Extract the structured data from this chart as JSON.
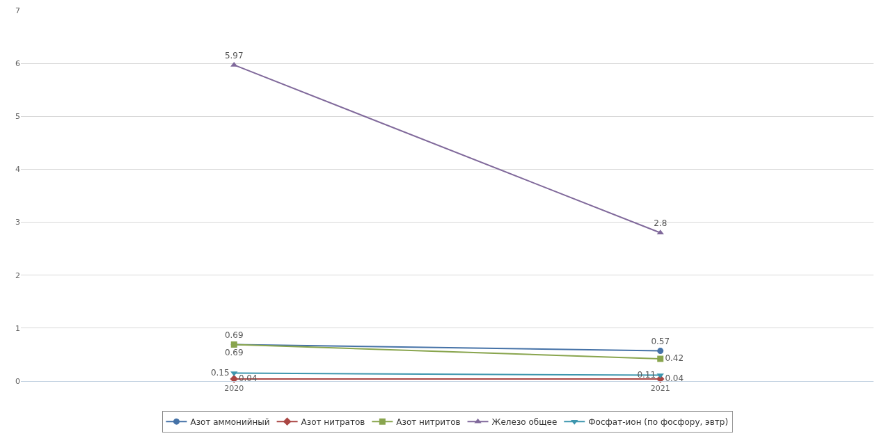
{
  "chart_data": {
    "type": "line",
    "categories": [
      "2020",
      "2021"
    ],
    "series": [
      {
        "name": "Азот аммонийный",
        "color": "#4572a7",
        "marker": "circle",
        "values": [
          0.69,
          0.57
        ]
      },
      {
        "name": "Азот нитратов",
        "color": "#aa4643",
        "marker": "diamond",
        "values": [
          0.04,
          0.04
        ]
      },
      {
        "name": "Азот нитритов",
        "color": "#89a54e",
        "marker": "square",
        "values": [
          0.69,
          0.42
        ]
      },
      {
        "name": "Железо общее",
        "color": "#80699b",
        "marker": "triangle",
        "values": [
          5.97,
          2.8
        ]
      },
      {
        "name": "Фосфат-ион (по фосфору, эвтр)",
        "color": "#3d96ae",
        "marker": "triangle-down",
        "values": [
          0.15,
          0.11
        ]
      }
    ],
    "ylim": [
      0,
      7
    ],
    "yticks": [
      0,
      1,
      2,
      3,
      4,
      5,
      6,
      7
    ],
    "grid": "y",
    "legend": "bottom",
    "data_labels": true,
    "line_style": "solid"
  }
}
